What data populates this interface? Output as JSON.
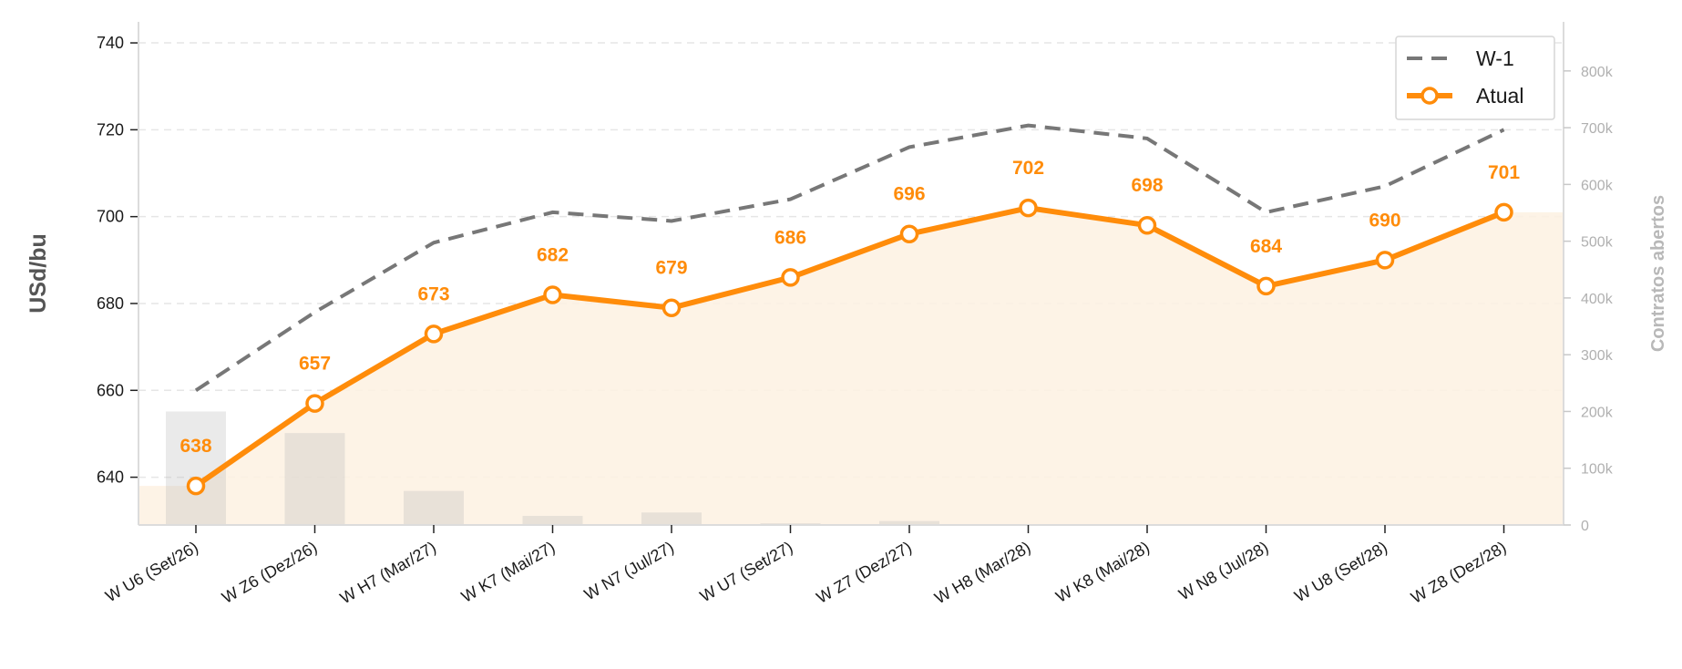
{
  "chart_data": {
    "type": "line",
    "categories": [
      "W U6 (Set/26)",
      "W Z6 (Dez/26)",
      "W H7 (Mar/27)",
      "W K7 (Mai/27)",
      "W N7 (Jul/27)",
      "W U7 (Set/27)",
      "W Z7 (Dez/27)",
      "W H8 (Mar/28)",
      "W K8 (Mai/28)",
      "W N8 (Jul/28)",
      "W U8 (Set/28)",
      "W Z8 (Dez/28)"
    ],
    "series": [
      {
        "name": "W-1",
        "style": "dashed",
        "color": "#777777",
        "values": [
          660,
          678,
          694,
          701,
          699,
          704,
          716,
          721,
          718,
          701,
          707,
          720
        ]
      },
      {
        "name": "Atual",
        "style": "solid-markers",
        "color": "#ff8c0a",
        "values": [
          638,
          657,
          673,
          682,
          679,
          686,
          696,
          702,
          698,
          684,
          690,
          701
        ],
        "labels": [
          "638",
          "657",
          "673",
          "682",
          "679",
          "686",
          "696",
          "702",
          "698",
          "684",
          "690",
          "701"
        ]
      }
    ],
    "bars": {
      "axis": "right",
      "color": "#b4b4b4",
      "values": [
        200000,
        162000,
        60000,
        16000,
        22000,
        3000,
        7000,
        1000,
        500,
        300,
        200,
        100
      ]
    },
    "area_fill": {
      "color": "#fdf1e2"
    },
    "ylabel": "USd/bu",
    "y2label": "Contratos abertos",
    "ylim": [
      629,
      744
    ],
    "yticks": [
      640,
      660,
      680,
      700,
      720,
      740
    ],
    "y2lim": [
      0,
      880000
    ],
    "y2ticks": [
      0,
      100000,
      200000,
      300000,
      400000,
      500000,
      600000,
      700000,
      800000
    ],
    "y2ticklabels": [
      "0",
      "100k",
      "200k",
      "300k",
      "400k",
      "500k",
      "600k",
      "700k",
      "800k"
    ],
    "grid": "y-dashed",
    "legend": {
      "placement": "top-right",
      "entries": [
        "W-1",
        "Atual"
      ]
    }
  }
}
